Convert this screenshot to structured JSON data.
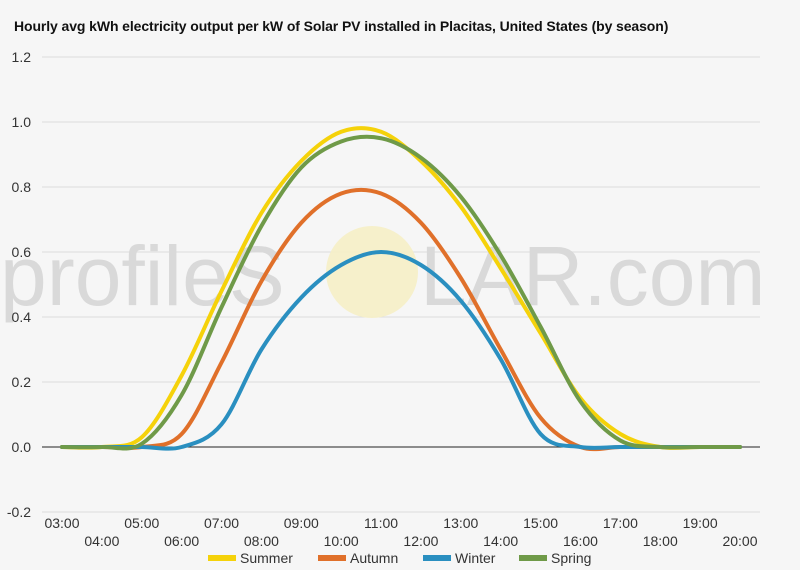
{
  "chart_data": {
    "type": "line",
    "title": "Hourly avg kWh electricity output per kW of Solar PV installed in Placitas, United States (by season)",
    "watermark": {
      "left": "profileS",
      "right": "LAR.com"
    },
    "x": [
      "03:00",
      "04:00",
      "05:00",
      "06:00",
      "07:00",
      "08:00",
      "09:00",
      "10:00",
      "11:00",
      "12:00",
      "13:00",
      "14:00",
      "15:00",
      "16:00",
      "17:00",
      "18:00",
      "19:00",
      "20:00"
    ],
    "ylim": [
      -0.2,
      1.2
    ],
    "yticks": [
      "-0.2",
      "0.0",
      "0.2",
      "0.4",
      "0.6",
      "0.8",
      "1.0",
      "1.2"
    ],
    "grid": true,
    "legend": "bottom",
    "series": [
      {
        "name": "Summer",
        "color": "#f5d20a",
        "values": [
          0,
          0,
          0.03,
          0.22,
          0.48,
          0.72,
          0.88,
          0.97,
          0.97,
          0.88,
          0.74,
          0.55,
          0.35,
          0.15,
          0.04,
          0,
          0,
          0
        ]
      },
      {
        "name": "Autumn",
        "color": "#e0702a",
        "values": [
          0,
          0,
          0,
          0.04,
          0.26,
          0.51,
          0.69,
          0.78,
          0.78,
          0.69,
          0.52,
          0.3,
          0.09,
          0,
          0,
          0,
          0,
          0
        ]
      },
      {
        "name": "Winter",
        "color": "#2a8fc0",
        "values": [
          0,
          0,
          0,
          0,
          0.07,
          0.3,
          0.46,
          0.56,
          0.6,
          0.56,
          0.45,
          0.27,
          0.04,
          0,
          0,
          0,
          0,
          0
        ]
      },
      {
        "name": "Spring",
        "color": "#6f9a48",
        "values": [
          0,
          0,
          0.01,
          0.16,
          0.43,
          0.68,
          0.86,
          0.94,
          0.95,
          0.89,
          0.77,
          0.59,
          0.37,
          0.14,
          0.02,
          0,
          0,
          0
        ]
      }
    ]
  }
}
